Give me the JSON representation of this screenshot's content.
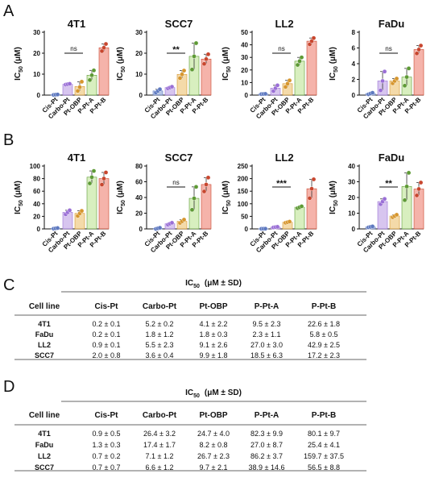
{
  "panel_letters": {
    "A": "A",
    "B": "B",
    "C": "C",
    "D": "D"
  },
  "ylabel": {
    "main": "IC",
    "sub": "50",
    "unit": " (μM)"
  },
  "colors": {
    "Cis-Pt": "#9DB3DE",
    "Carbo-Pt": "#C9B2EA",
    "Pt-OBP": "#F0CE8C",
    "P-Pt-A": "#CBE9A9",
    "P-Pt-B": "#F29A8E"
  },
  "point_colors": {
    "Cis-Pt": "#5E79C0",
    "Carbo-Pt": "#9A6FD6",
    "Pt-OBP": "#D6962E",
    "P-Pt-A": "#5E9A35",
    "P-Pt-B": "#C8462E"
  },
  "chart_data": [
    {
      "type": "bar",
      "row": "A",
      "title": "4T1",
      "categories": [
        "Cis-Pt",
        "Carbo-Pt",
        "Pt-OBP",
        "P-Pt-A",
        "P-Pt-B"
      ],
      "values": [
        0.2,
        5.2,
        4.1,
        9.5,
        22.6
      ],
      "errors": [
        0.1,
        0.2,
        2.2,
        2.3,
        1.8
      ],
      "ylim": [
        0,
        30
      ],
      "yticks": [
        0,
        10,
        20,
        30
      ],
      "points": [
        [
          0.1,
          0.2,
          0.3
        ],
        [
          5.0,
          5.2,
          5.4
        ],
        [
          2.0,
          3.8,
          6.4
        ],
        [
          7.2,
          9.5,
          11.8
        ],
        [
          21.0,
          22.6,
          24.4
        ]
      ],
      "sig": {
        "from": 1,
        "to": 2,
        "label": "ns"
      }
    },
    {
      "type": "bar",
      "row": "A",
      "title": "SCC7",
      "categories": [
        "Cis-Pt",
        "Carbo-Pt",
        "Pt-OBP",
        "P-Pt-A",
        "P-Pt-B"
      ],
      "values": [
        2.0,
        3.6,
        9.9,
        18.5,
        17.2
      ],
      "errors": [
        0.8,
        0.4,
        1.8,
        6.3,
        2.3
      ],
      "ylim": [
        0,
        30
      ],
      "yticks": [
        0,
        10,
        20,
        30
      ],
      "points": [
        [
          1.2,
          2.0,
          2.8
        ],
        [
          3.2,
          3.6,
          4.0
        ],
        [
          8.1,
          9.9,
          11.7
        ],
        [
          12.2,
          18.5,
          24.8
        ],
        [
          14.9,
          17.2,
          19.5
        ]
      ],
      "sig": {
        "from": 1,
        "to": 2,
        "label": "**"
      }
    },
    {
      "type": "bar",
      "row": "A",
      "title": "LL2",
      "categories": [
        "Cis-Pt",
        "Carbo-Pt",
        "Pt-OBP",
        "P-Pt-A",
        "P-Pt-B"
      ],
      "values": [
        0.9,
        5.5,
        9.1,
        27.0,
        42.9
      ],
      "errors": [
        0.1,
        2.3,
        2.6,
        3.0,
        2.5
      ],
      "ylim": [
        0,
        50
      ],
      "yticks": [
        0,
        10,
        20,
        30,
        40,
        50
      ],
      "points": [
        [
          0.8,
          0.9,
          1.0
        ],
        [
          3.2,
          5.5,
          7.8
        ],
        [
          6.5,
          9.1,
          11.7
        ],
        [
          24.0,
          27.0,
          30.0
        ],
        [
          40.4,
          42.9,
          45.4
        ]
      ],
      "sig": {
        "from": 1,
        "to": 2,
        "label": "ns"
      }
    },
    {
      "type": "bar",
      "row": "A",
      "title": "FaDu",
      "categories": [
        "Cis-Pt",
        "Carbo-Pt",
        "Pt-OBP",
        "P-Pt-A",
        "P-Pt-B"
      ],
      "values": [
        0.2,
        1.8,
        1.8,
        2.3,
        5.8
      ],
      "errors": [
        0.1,
        1.2,
        0.3,
        1.1,
        0.5
      ],
      "ylim": [
        0,
        8
      ],
      "yticks": [
        0,
        2,
        4,
        6,
        8
      ],
      "points": [
        [
          0.1,
          0.2,
          0.3
        ],
        [
          0.6,
          1.8,
          3.0
        ],
        [
          1.5,
          1.8,
          2.1
        ],
        [
          1.2,
          2.3,
          3.4
        ],
        [
          5.3,
          5.8,
          6.3
        ]
      ],
      "sig": {
        "from": 1,
        "to": 2,
        "label": "ns"
      }
    },
    {
      "type": "bar",
      "row": "B",
      "title": "4T1",
      "categories": [
        "Cis-Pt",
        "Carbo-Pt",
        "Pt-OBP",
        "P-Pt-A",
        "P-Pt-B"
      ],
      "values": [
        0.9,
        26.4,
        24.7,
        82.3,
        80.1
      ],
      "errors": [
        0.5,
        3.2,
        4.0,
        9.9,
        9.7
      ],
      "ylim": [
        0,
        100
      ],
      "yticks": [
        0,
        20,
        40,
        60,
        80,
        100
      ],
      "points": [
        [
          0.4,
          0.9,
          1.4
        ],
        [
          23.2,
          26.4,
          29.6
        ],
        [
          20.7,
          24.7,
          28.7
        ],
        [
          72.4,
          82.3,
          92.2
        ],
        [
          70.4,
          80.1,
          89.8
        ]
      ],
      "sig": null
    },
    {
      "type": "bar",
      "row": "B",
      "title": "SCC7",
      "categories": [
        "Cis-Pt",
        "Carbo-Pt",
        "Pt-OBP",
        "P-Pt-A",
        "P-Pt-B"
      ],
      "values": [
        0.7,
        6.6,
        9.7,
        38.9,
        56.5
      ],
      "errors": [
        0.7,
        1.2,
        2.1,
        14.6,
        8.8
      ],
      "ylim": [
        0,
        80
      ],
      "yticks": [
        0,
        20,
        40,
        60,
        80
      ],
      "points": [
        [
          0.0,
          0.7,
          1.4
        ],
        [
          5.4,
          6.6,
          7.8
        ],
        [
          7.6,
          9.7,
          11.8
        ],
        [
          24.3,
          38.9,
          53.5
        ],
        [
          47.7,
          56.5,
          65.3
        ]
      ],
      "sig": {
        "from": 1,
        "to": 2,
        "label": "ns"
      }
    },
    {
      "type": "bar",
      "row": "B",
      "title": "LL2",
      "categories": [
        "Cis-Pt",
        "Carbo-Pt",
        "Pt-OBP",
        "P-Pt-A",
        "P-Pt-B"
      ],
      "values": [
        0.7,
        7.1,
        26.7,
        86.2,
        159.7
      ],
      "errors": [
        0.2,
        1.2,
        2.3,
        3.7,
        37.5
      ],
      "ylim": [
        0,
        250
      ],
      "yticks": [
        0,
        50,
        100,
        150,
        200,
        250
      ],
      "points": [
        [
          0.5,
          0.7,
          0.9
        ],
        [
          5.9,
          7.1,
          8.3
        ],
        [
          24.4,
          26.7,
          29.0
        ],
        [
          82.5,
          86.2,
          89.9
        ],
        [
          122.2,
          159.7,
          197.2
        ]
      ],
      "sig": {
        "from": 1,
        "to": 2,
        "label": "***"
      }
    },
    {
      "type": "bar",
      "row": "B",
      "title": "FaDu",
      "categories": [
        "Cis-Pt",
        "Carbo-Pt",
        "Pt-OBP",
        "P-Pt-A",
        "P-Pt-B"
      ],
      "values": [
        1.3,
        17.4,
        8.2,
        27.0,
        25.4
      ],
      "errors": [
        0.3,
        1.7,
        0.8,
        8.7,
        4.1
      ],
      "ylim": [
        0,
        40
      ],
      "yticks": [
        0,
        10,
        20,
        30,
        40
      ],
      "points": [
        [
          1.0,
          1.3,
          1.6
        ],
        [
          15.7,
          17.4,
          19.1
        ],
        [
          7.4,
          8.2,
          9.0
        ],
        [
          18.3,
          27.0,
          35.7
        ],
        [
          21.3,
          25.4,
          29.5
        ]
      ],
      "sig": {
        "from": 1,
        "to": 2,
        "label": "**"
      }
    }
  ],
  "tables": [
    {
      "letter": "C",
      "header": {
        "main": "IC",
        "sub": "50",
        "unit": "(μM ± SD)"
      },
      "columns": [
        "Cell line",
        "Cis-Pt",
        "Carbo-Pt",
        "Pt-OBP",
        "P-Pt-A",
        "P-Pt-B"
      ],
      "rows": [
        [
          "4T1",
          "0.2 ± 0.1",
          "5.2 ± 0.2",
          "4.1 ± 2.2",
          "9.5 ± 2.3",
          "22.6 ± 1.8"
        ],
        [
          "FaDu",
          "0.2 ± 0.1",
          "1.8 ± 1.2",
          "1.8 ± 0.3",
          "2.3 ± 1.1",
          "5.8 ± 0.5"
        ],
        [
          "LL2",
          "0.9 ± 0.1",
          "5.5 ± 2.3",
          "9.1 ± 2.6",
          "27.0 ± 3.0",
          "42.9 ± 2.5"
        ],
        [
          "SCC7",
          "2.0 ± 0.8",
          "3.6 ± 0.4",
          "9.9 ± 1.8",
          "18.5 ± 6.3",
          "17.2 ± 2.3"
        ]
      ]
    },
    {
      "letter": "D",
      "header": {
        "main": "IC",
        "sub": "50",
        "unit": "(μM ± SD)"
      },
      "columns": [
        "Cell line",
        "Cis-Pt",
        "Carbo-Pt",
        "Pt-OBP",
        "P-Pt-A",
        "P-Pt-B"
      ],
      "rows": [
        [
          "4T1",
          "0.9 ± 0.5",
          "26.4 ± 3.2",
          "24.7 ± 4.0",
          "82.3 ± 9.9",
          "80.1 ± 9.7"
        ],
        [
          "FaDu",
          "1.3 ± 0.3",
          "17.4 ± 1.7",
          "8.2 ± 0.8",
          "27.0 ± 8.7",
          "25.4 ± 4.1"
        ],
        [
          "LL2",
          "0.7 ± 0.2",
          "7.1 ± 1.2",
          "26.7 ± 2.3",
          "86.2 ± 3.7",
          "159.7 ± 37.5"
        ],
        [
          "SCC7",
          "0.7 ± 0.7",
          "6.6 ± 1.2",
          "9.7 ± 2.1",
          "38.9 ± 14.6",
          "56.5 ± 8.8"
        ]
      ]
    }
  ]
}
